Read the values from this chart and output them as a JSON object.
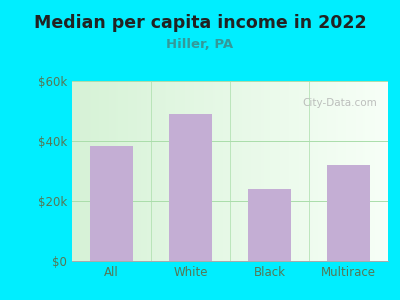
{
  "title": "Median per capita income in 2022",
  "subtitle": "Hiller, PA",
  "categories": [
    "All",
    "White",
    "Black",
    "Multirace"
  ],
  "values": [
    38500,
    49000,
    24000,
    32000
  ],
  "bar_color": "#c4aed4",
  "title_fontsize": 12.5,
  "subtitle_fontsize": 9.5,
  "subtitle_color": "#339999",
  "title_color": "#222222",
  "outer_bg": "#00eeff",
  "ytick_color": "#557755",
  "xtick_color": "#557755",
  "ylim": [
    0,
    60000
  ],
  "yticks": [
    0,
    20000,
    40000,
    60000
  ],
  "ytick_labels": [
    "$0",
    "$20k",
    "$40k",
    "$60k"
  ],
  "watermark": "City-Data.com",
  "grid_color": "#aaddaa",
  "plot_bg_left": "#d8f0d8",
  "plot_bg_right": "#f0f8f0"
}
